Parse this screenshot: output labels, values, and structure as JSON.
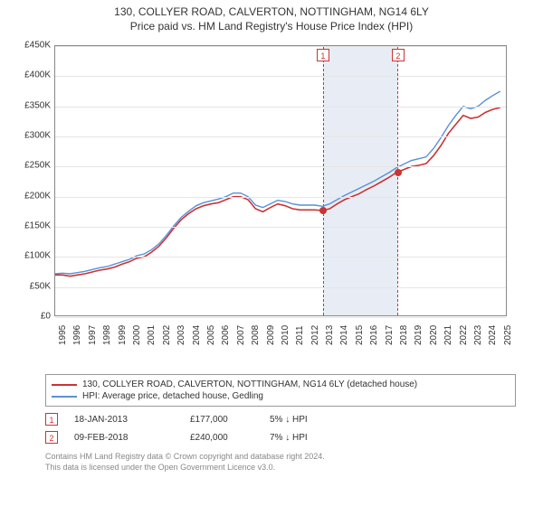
{
  "title_line1": "130, COLLYER ROAD, CALVERTON, NOTTINGHAM, NG14 6LY",
  "title_line2": "Price paid vs. HM Land Registry's House Price Index (HPI)",
  "chart": {
    "type": "line",
    "background_color": "#ffffff",
    "grid_color": "#e5e5e5",
    "axis_color": "#888888",
    "label_fontsize": 10,
    "x_range": [
      1995,
      2025.5
    ],
    "x_ticks": [
      1995,
      1996,
      1997,
      1998,
      1999,
      2000,
      2001,
      2002,
      2003,
      2004,
      2005,
      2006,
      2007,
      2008,
      2009,
      2010,
      2011,
      2012,
      2013,
      2014,
      2015,
      2016,
      2017,
      2018,
      2019,
      2020,
      2021,
      2022,
      2023,
      2024,
      2025
    ],
    "y_range": [
      0,
      450000
    ],
    "y_ticks": [
      0,
      50000,
      100000,
      150000,
      200000,
      250000,
      300000,
      350000,
      400000,
      450000
    ],
    "y_tick_labels": [
      "£0",
      "£50K",
      "£100K",
      "£150K",
      "£200K",
      "£250K",
      "£300K",
      "£350K",
      "£400K",
      "£450K"
    ],
    "shaded_region": {
      "start": 2013.05,
      "end": 2018.11,
      "fill": "#e8edf5",
      "border": "#cc3333"
    },
    "series": [
      {
        "name": "property_price",
        "color": "#cc3333",
        "line_width": 1.6,
        "points": [
          [
            1995.0,
            70000
          ],
          [
            1995.5,
            70000
          ],
          [
            1996.0,
            68000
          ],
          [
            1996.5,
            70000
          ],
          [
            1997.0,
            72000
          ],
          [
            1997.5,
            75000
          ],
          [
            1998.0,
            78000
          ],
          [
            1998.5,
            80000
          ],
          [
            1999.0,
            83000
          ],
          [
            1999.5,
            88000
          ],
          [
            2000.0,
            92000
          ],
          [
            2000.5,
            98000
          ],
          [
            2001.0,
            100000
          ],
          [
            2001.5,
            108000
          ],
          [
            2002.0,
            118000
          ],
          [
            2002.5,
            132000
          ],
          [
            2003.0,
            148000
          ],
          [
            2003.5,
            162000
          ],
          [
            2004.0,
            172000
          ],
          [
            2004.5,
            180000
          ],
          [
            2005.0,
            185000
          ],
          [
            2005.5,
            188000
          ],
          [
            2006.0,
            190000
          ],
          [
            2006.5,
            195000
          ],
          [
            2007.0,
            200000
          ],
          [
            2007.5,
            200000
          ],
          [
            2008.0,
            195000
          ],
          [
            2008.5,
            180000
          ],
          [
            2009.0,
            175000
          ],
          [
            2009.5,
            182000
          ],
          [
            2010.0,
            188000
          ],
          [
            2010.5,
            185000
          ],
          [
            2011.0,
            180000
          ],
          [
            2011.5,
            178000
          ],
          [
            2012.0,
            178000
          ],
          [
            2012.5,
            178000
          ],
          [
            2013.0,
            177000
          ],
          [
            2013.5,
            180000
          ],
          [
            2014.0,
            188000
          ],
          [
            2014.5,
            195000
          ],
          [
            2015.0,
            200000
          ],
          [
            2015.5,
            205000
          ],
          [
            2016.0,
            212000
          ],
          [
            2016.5,
            218000
          ],
          [
            2017.0,
            225000
          ],
          [
            2017.5,
            232000
          ],
          [
            2018.0,
            240000
          ],
          [
            2018.5,
            245000
          ],
          [
            2019.0,
            250000
          ],
          [
            2019.5,
            252000
          ],
          [
            2020.0,
            255000
          ],
          [
            2020.5,
            268000
          ],
          [
            2021.0,
            285000
          ],
          [
            2021.5,
            305000
          ],
          [
            2022.0,
            320000
          ],
          [
            2022.5,
            335000
          ],
          [
            2023.0,
            330000
          ],
          [
            2023.5,
            332000
          ],
          [
            2024.0,
            340000
          ],
          [
            2024.5,
            345000
          ],
          [
            2025.0,
            348000
          ]
        ]
      },
      {
        "name": "hpi",
        "color": "#5b8fd6",
        "line_width": 1.4,
        "points": [
          [
            1995.0,
            72000
          ],
          [
            1995.5,
            73000
          ],
          [
            1996.0,
            72000
          ],
          [
            1996.5,
            74000
          ],
          [
            1997.0,
            76000
          ],
          [
            1997.5,
            79000
          ],
          [
            1998.0,
            82000
          ],
          [
            1998.5,
            84000
          ],
          [
            1999.0,
            88000
          ],
          [
            1999.5,
            92000
          ],
          [
            2000.0,
            96000
          ],
          [
            2000.5,
            102000
          ],
          [
            2001.0,
            105000
          ],
          [
            2001.5,
            112000
          ],
          [
            2002.0,
            122000
          ],
          [
            2002.5,
            136000
          ],
          [
            2003.0,
            152000
          ],
          [
            2003.5,
            166000
          ],
          [
            2004.0,
            176000
          ],
          [
            2004.5,
            185000
          ],
          [
            2005.0,
            190000
          ],
          [
            2005.5,
            193000
          ],
          [
            2006.0,
            196000
          ],
          [
            2006.5,
            200000
          ],
          [
            2007.0,
            206000
          ],
          [
            2007.5,
            206000
          ],
          [
            2008.0,
            200000
          ],
          [
            2008.5,
            186000
          ],
          [
            2009.0,
            182000
          ],
          [
            2009.5,
            188000
          ],
          [
            2010.0,
            194000
          ],
          [
            2010.5,
            192000
          ],
          [
            2011.0,
            188000
          ],
          [
            2011.5,
            186000
          ],
          [
            2012.0,
            186000
          ],
          [
            2012.5,
            186000
          ],
          [
            2013.0,
            184000
          ],
          [
            2013.5,
            188000
          ],
          [
            2014.0,
            195000
          ],
          [
            2014.5,
            202000
          ],
          [
            2015.0,
            208000
          ],
          [
            2015.5,
            214000
          ],
          [
            2016.0,
            220000
          ],
          [
            2016.5,
            226000
          ],
          [
            2017.0,
            233000
          ],
          [
            2017.5,
            240000
          ],
          [
            2018.0,
            248000
          ],
          [
            2018.5,
            254000
          ],
          [
            2019.0,
            260000
          ],
          [
            2019.5,
            263000
          ],
          [
            2020.0,
            266000
          ],
          [
            2020.5,
            280000
          ],
          [
            2021.0,
            298000
          ],
          [
            2021.5,
            318000
          ],
          [
            2022.0,
            335000
          ],
          [
            2022.5,
            350000
          ],
          [
            2023.0,
            346000
          ],
          [
            2023.5,
            350000
          ],
          [
            2024.0,
            360000
          ],
          [
            2024.5,
            368000
          ],
          [
            2025.0,
            375000
          ]
        ]
      }
    ],
    "event_markers": [
      {
        "label": "1",
        "x": 2013.05,
        "y_box": 435000,
        "point_y": 177000
      },
      {
        "label": "2",
        "x": 2018.11,
        "y_box": 435000,
        "point_y": 240000
      }
    ]
  },
  "legend": {
    "items": [
      {
        "color": "#cc3333",
        "label": "130, COLLYER ROAD, CALVERTON, NOTTINGHAM, NG14 6LY (detached house)"
      },
      {
        "color": "#5b8fd6",
        "label": "HPI: Average price, detached house, Gedling"
      }
    ]
  },
  "events": [
    {
      "num": "1",
      "date": "18-JAN-2013",
      "price": "£177,000",
      "pct": "5%",
      "arrow": "↓",
      "vs": "HPI"
    },
    {
      "num": "2",
      "date": "09-FEB-2018",
      "price": "£240,000",
      "pct": "7%",
      "arrow": "↓",
      "vs": "HPI"
    }
  ],
  "footer": {
    "line1": "Contains HM Land Registry data © Crown copyright and database right 2024.",
    "line2": "This data is licensed under the Open Government Licence v3.0."
  }
}
